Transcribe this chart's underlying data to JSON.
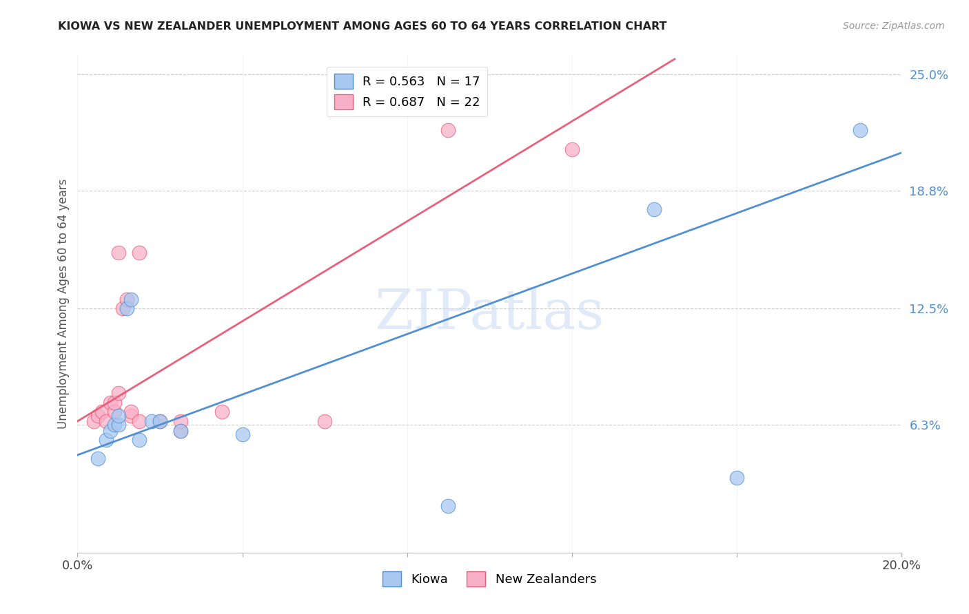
{
  "title": "KIOWA VS NEW ZEALANDER UNEMPLOYMENT AMONG AGES 60 TO 64 YEARS CORRELATION CHART",
  "source": "Source: ZipAtlas.com",
  "ylabel": "Unemployment Among Ages 60 to 64 years",
  "xlim": [
    0.0,
    0.2
  ],
  "ylim": [
    -0.005,
    0.26
  ],
  "ytick_labels_right": [
    "25.0%",
    "18.8%",
    "12.5%",
    "6.3%"
  ],
  "ytick_vals_right": [
    0.25,
    0.188,
    0.125,
    0.063
  ],
  "kiowa_R": 0.563,
  "kiowa_N": 17,
  "nz_R": 0.687,
  "nz_N": 22,
  "kiowa_color": "#a8c8f0",
  "nz_color": "#f8b0c8",
  "kiowa_line_color": "#5090d0",
  "nz_line_color": "#e8607a",
  "watermark_text": "ZIPatlas",
  "background_color": "#ffffff",
  "grid_color": "#cccccc",
  "kiowa_scatter_x": [
    0.005,
    0.007,
    0.008,
    0.009,
    0.01,
    0.01,
    0.012,
    0.013,
    0.015,
    0.018,
    0.02,
    0.025,
    0.04,
    0.09,
    0.14,
    0.16,
    0.19
  ],
  "kiowa_scatter_y": [
    0.045,
    0.055,
    0.06,
    0.063,
    0.063,
    0.068,
    0.125,
    0.13,
    0.055,
    0.065,
    0.065,
    0.06,
    0.058,
    0.02,
    0.178,
    0.035,
    0.22
  ],
  "nz_scatter_x": [
    0.004,
    0.005,
    0.006,
    0.007,
    0.008,
    0.009,
    0.009,
    0.01,
    0.01,
    0.011,
    0.012,
    0.013,
    0.013,
    0.015,
    0.015,
    0.02,
    0.025,
    0.025,
    0.035,
    0.06,
    0.09,
    0.12
  ],
  "nz_scatter_y": [
    0.065,
    0.068,
    0.07,
    0.065,
    0.075,
    0.07,
    0.075,
    0.08,
    0.155,
    0.125,
    0.13,
    0.068,
    0.07,
    0.065,
    0.155,
    0.065,
    0.06,
    0.065,
    0.07,
    0.065,
    0.22,
    0.21
  ],
  "kiowa_line_x0": 0.0,
  "kiowa_line_y0": 0.047,
  "kiowa_line_x1": 0.2,
  "kiowa_line_y1": 0.208,
  "nz_line_x0": 0.0,
  "nz_line_y0": 0.065,
  "nz_line_x1": 0.145,
  "nz_line_y1": 0.258
}
